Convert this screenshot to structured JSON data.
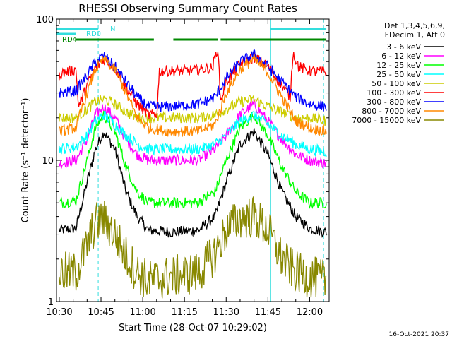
{
  "chart_data": {
    "type": "line",
    "title": "RHESSI Observing Summary Count Rates",
    "xlabel": "Start Time (28-Oct-07 10:29:02)",
    "ylabel": "Count Rate (s⁻¹ detector⁻¹)",
    "y_scale": "log",
    "ylim": [
      1,
      100
    ],
    "xlim": [
      "10:29",
      "12:07"
    ],
    "x_ticks": [
      "10:30",
      "10:45",
      "11:00",
      "11:15",
      "11:30",
      "11:45",
      "12:00"
    ],
    "y_ticks": [
      "1",
      "10",
      "100"
    ],
    "legend_header": [
      "Det 1,3,4,5,6,9,",
      "FDecim 1, Att 0"
    ],
    "timestamp": "16-Oct-2021 20:37",
    "flags": [
      {
        "label": "N",
        "color": "#33dddd",
        "segments": [
          [
            "10:29",
            "10:44"
          ],
          [
            "11:46",
            "12:06"
          ]
        ]
      },
      {
        "label": "RD0",
        "color": "#33dddd",
        "segments": [
          [
            "10:29",
            "10:36"
          ]
        ]
      },
      {
        "label": "RD4",
        "color": "#008800",
        "segments": [
          [
            "10:36",
            "11:04"
          ],
          [
            "11:11",
            "11:27"
          ],
          [
            "11:28",
            "11:53"
          ],
          [
            "11:53",
            "12:06"
          ]
        ]
      }
    ],
    "vertical_lines": [
      {
        "time": "10:29",
        "color": "#33dddd",
        "style": "solid"
      },
      {
        "time": "10:44",
        "color": "#33dddd",
        "style": "dashed"
      },
      {
        "time": "11:46",
        "color": "#33dddd",
        "style": "solid"
      },
      {
        "time": "12:05",
        "color": "#33dddd",
        "style": "dashed"
      }
    ],
    "series": [
      {
        "name": "3 - 6 keV",
        "color": "#000000",
        "points": [
          [
            "10:30",
            3.2
          ],
          [
            "10:36",
            3.3
          ],
          [
            "10:40",
            7
          ],
          [
            "10:43",
            12
          ],
          [
            "10:46",
            16
          ],
          [
            "10:50",
            12
          ],
          [
            "10:54",
            6
          ],
          [
            "10:58",
            4
          ],
          [
            "11:02",
            3.2
          ],
          [
            "11:10",
            3.1
          ],
          [
            "11:20",
            3.2
          ],
          [
            "11:26",
            4
          ],
          [
            "11:30",
            7
          ],
          [
            "11:35",
            13
          ],
          [
            "11:40",
            16
          ],
          [
            "11:45",
            11
          ],
          [
            "11:50",
            6
          ],
          [
            "11:55",
            4
          ],
          [
            "12:00",
            3.3
          ],
          [
            "12:06",
            3.1
          ]
        ]
      },
      {
        "name": "6 - 12 keV",
        "color": "#ff00ff",
        "points": [
          [
            "10:30",
            9.5
          ],
          [
            "10:36",
            10
          ],
          [
            "10:40",
            14
          ],
          [
            "10:43",
            21
          ],
          [
            "10:46",
            24
          ],
          [
            "10:50",
            20
          ],
          [
            "10:54",
            14
          ],
          [
            "10:58",
            11
          ],
          [
            "11:02",
            10
          ],
          [
            "11:10",
            10
          ],
          [
            "11:20",
            10
          ],
          [
            "11:26",
            12
          ],
          [
            "11:30",
            15
          ],
          [
            "11:35",
            21
          ],
          [
            "11:40",
            25
          ],
          [
            "11:45",
            19
          ],
          [
            "11:50",
            14
          ],
          [
            "11:55",
            11
          ],
          [
            "12:00",
            10
          ],
          [
            "12:06",
            9.5
          ]
        ]
      },
      {
        "name": "12 - 25 keV",
        "color": "#00ff00",
        "points": [
          [
            "10:30",
            5
          ],
          [
            "10:36",
            5.2
          ],
          [
            "10:40",
            10
          ],
          [
            "10:43",
            17
          ],
          [
            "10:46",
            21
          ],
          [
            "10:50",
            16
          ],
          [
            "10:54",
            9
          ],
          [
            "10:58",
            6
          ],
          [
            "11:02",
            5
          ],
          [
            "11:10",
            5
          ],
          [
            "11:20",
            5
          ],
          [
            "11:26",
            6
          ],
          [
            "11:30",
            10
          ],
          [
            "11:35",
            17
          ],
          [
            "11:40",
            21
          ],
          [
            "11:45",
            15
          ],
          [
            "11:50",
            9
          ],
          [
            "11:55",
            6
          ],
          [
            "12:00",
            5
          ],
          [
            "12:06",
            5
          ]
        ]
      },
      {
        "name": "25 - 50 keV",
        "color": "#00ffff",
        "points": [
          [
            "10:30",
            12
          ],
          [
            "10:36",
            12.5
          ],
          [
            "10:40",
            15
          ],
          [
            "10:43",
            19
          ],
          [
            "10:46",
            21
          ],
          [
            "10:50",
            18
          ],
          [
            "10:54",
            15
          ],
          [
            "10:58",
            13
          ],
          [
            "11:02",
            12
          ],
          [
            "11:10",
            12
          ],
          [
            "11:20",
            12
          ],
          [
            "11:26",
            13
          ],
          [
            "11:30",
            15
          ],
          [
            "11:35",
            19
          ],
          [
            "11:40",
            21
          ],
          [
            "11:45",
            18
          ],
          [
            "11:50",
            15
          ],
          [
            "11:55",
            13
          ],
          [
            "12:00",
            12
          ],
          [
            "12:06",
            11.5
          ]
        ]
      },
      {
        "name": "50 - 100 keV",
        "color": "#cccc00",
        "points": [
          [
            "10:30",
            20
          ],
          [
            "10:36",
            20
          ],
          [
            "10:40",
            23
          ],
          [
            "10:43",
            26
          ],
          [
            "10:46",
            27
          ],
          [
            "10:50",
            25
          ],
          [
            "10:54",
            22
          ],
          [
            "10:58",
            20
          ],
          [
            "11:02",
            20
          ],
          [
            "11:10",
            20
          ],
          [
            "11:20",
            20
          ],
          [
            "11:26",
            21
          ],
          [
            "11:30",
            23
          ],
          [
            "11:35",
            26
          ],
          [
            "11:40",
            27
          ],
          [
            "11:45",
            24
          ],
          [
            "11:50",
            22
          ],
          [
            "11:55",
            20
          ],
          [
            "12:00",
            20
          ],
          [
            "12:06",
            19
          ]
        ]
      },
      {
        "name": "100 - 300 keV",
        "color": "#ff0000",
        "points": [
          [
            "10:30",
            41
          ],
          [
            "10:36",
            44
          ],
          [
            "10:37",
            24
          ],
          [
            "10:40",
            34
          ],
          [
            "10:43",
            45
          ],
          [
            "10:46",
            52
          ],
          [
            "10:50",
            45
          ],
          [
            "10:54",
            33
          ],
          [
            "10:58",
            25
          ],
          [
            "11:02",
            21
          ],
          [
            "11:05",
            21
          ],
          [
            "11:06",
            43
          ],
          [
            "11:15",
            43
          ],
          [
            "11:25",
            45
          ],
          [
            "11:27",
            63
          ],
          [
            "11:28",
            26
          ],
          [
            "11:30",
            36
          ],
          [
            "11:35",
            48
          ],
          [
            "11:40",
            54
          ],
          [
            "11:45",
            46
          ],
          [
            "11:50",
            34
          ],
          [
            "11:53",
            28
          ],
          [
            "11:54",
            58
          ],
          [
            "11:56",
            46
          ],
          [
            "12:00",
            43
          ],
          [
            "12:06",
            42
          ]
        ]
      },
      {
        "name": "300 - 800 keV",
        "color": "#0000ff",
        "points": [
          [
            "10:30",
            30
          ],
          [
            "10:36",
            31
          ],
          [
            "10:40",
            40
          ],
          [
            "10:43",
            50
          ],
          [
            "10:46",
            55
          ],
          [
            "10:50",
            46
          ],
          [
            "10:54",
            36
          ],
          [
            "10:58",
            28
          ],
          [
            "11:02",
            24
          ],
          [
            "11:10",
            24
          ],
          [
            "11:20",
            25
          ],
          [
            "11:26",
            28
          ],
          [
            "11:30",
            38
          ],
          [
            "11:35",
            50
          ],
          [
            "11:40",
            56
          ],
          [
            "11:45",
            46
          ],
          [
            "11:50",
            36
          ],
          [
            "11:55",
            28
          ],
          [
            "12:00",
            25
          ],
          [
            "12:06",
            24
          ]
        ]
      },
      {
        "name": "800 - 7000 keV",
        "color": "#ff8800",
        "points": [
          [
            "10:30",
            16
          ],
          [
            "10:36",
            17
          ],
          [
            "10:40",
            30
          ],
          [
            "10:43",
            44
          ],
          [
            "10:46",
            52
          ],
          [
            "10:50",
            44
          ],
          [
            "10:54",
            30
          ],
          [
            "10:58",
            20
          ],
          [
            "11:02",
            17
          ],
          [
            "11:10",
            16
          ],
          [
            "11:20",
            16
          ],
          [
            "11:26",
            18
          ],
          [
            "11:30",
            30
          ],
          [
            "11:35",
            44
          ],
          [
            "11:40",
            52
          ],
          [
            "11:45",
            42
          ],
          [
            "11:50",
            28
          ],
          [
            "11:55",
            19
          ],
          [
            "12:00",
            17
          ],
          [
            "12:06",
            16
          ]
        ]
      },
      {
        "name": "7000 - 15000 keV",
        "color": "#888800",
        "points": [
          [
            "10:30",
            1.6
          ],
          [
            "10:36",
            1.6
          ],
          [
            "10:40",
            2.5
          ],
          [
            "10:43",
            3.6
          ],
          [
            "10:46",
            3.8
          ],
          [
            "10:50",
            3
          ],
          [
            "10:54",
            2.1
          ],
          [
            "10:58",
            1.6
          ],
          [
            "11:02",
            1.4
          ],
          [
            "11:10",
            1.5
          ],
          [
            "11:20",
            1.6
          ],
          [
            "11:26",
            2.2
          ],
          [
            "11:30",
            3.2
          ],
          [
            "11:35",
            3.9
          ],
          [
            "11:40",
            4
          ],
          [
            "11:45",
            3.2
          ],
          [
            "11:50",
            2
          ],
          [
            "11:55",
            1.6
          ],
          [
            "12:00",
            1.5
          ],
          [
            "12:06",
            1.4
          ]
        ]
      }
    ]
  }
}
